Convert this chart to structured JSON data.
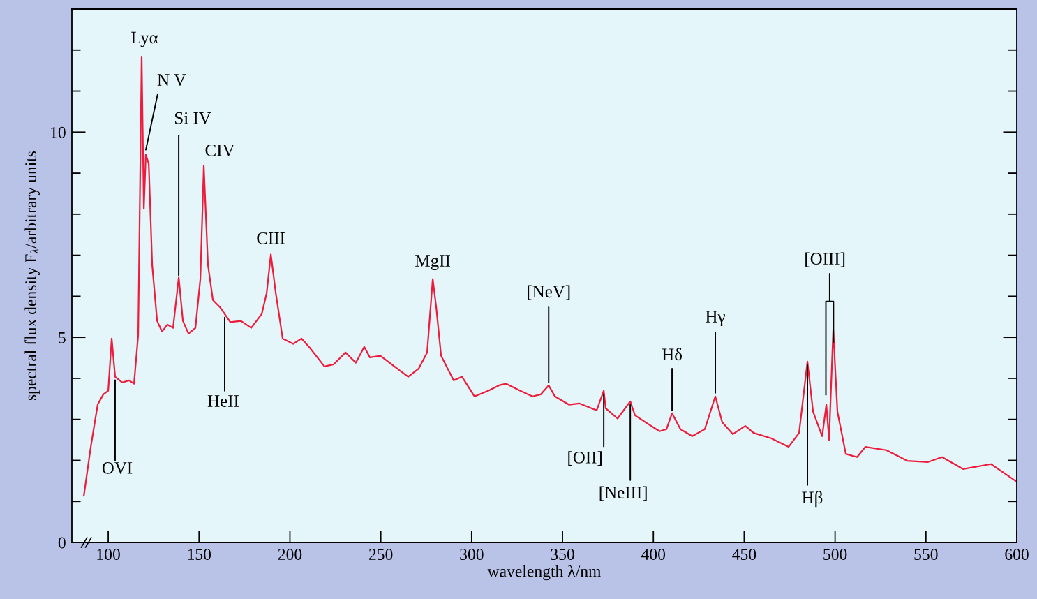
{
  "chart_data": {
    "type": "line",
    "xlabel": "wavelength λ/nm",
    "ylabel": "spectral flux density F$_{λ}$/arbitrary units",
    "xlim": [
      80,
      600
    ],
    "ylim": [
      0,
      13
    ],
    "xticks": [
      100,
      150,
      200,
      250,
      300,
      350,
      400,
      450,
      500,
      550,
      600
    ],
    "yticks": [
      0,
      {
        "value": 1,
        "label": null
      },
      {
        "value": 2,
        "label": null
      },
      {
        "value": 3,
        "label": null
      },
      {
        "value": 4,
        "label": null
      },
      5,
      {
        "value": 6,
        "label": null
      },
      {
        "value": 7,
        "label": null
      },
      {
        "value": 8,
        "label": null
      },
      {
        "value": 9,
        "label": null
      },
      10,
      {
        "value": 11,
        "label": null
      },
      {
        "value": 12,
        "label": null
      }
    ],
    "grid": false,
    "legend": false,
    "marker": "none",
    "line_style": "solid",
    "series": [
      {
        "color": "#ee1c3c",
        "x": [
          86.6,
          90.4,
          94.2,
          97.3,
          100,
          101.9,
          103.8,
          107.7,
          111.5,
          114.2,
          116.5,
          118.4,
          119.6,
          120.7,
          122.3,
          124.2,
          126.9,
          129.6,
          132.6,
          135.7,
          138.8,
          141.1,
          144.2,
          148.0,
          150.7,
          152.6,
          154.9,
          157.6,
          161.4,
          164.1,
          167.2,
          173.0,
          178.7,
          184.5,
          187.2,
          189.5,
          192.2,
          196.0,
          201.8,
          206.4,
          211.4,
          219.0,
          224.0,
          230.6,
          236.3,
          240.9,
          244.0,
          249.8,
          257.5,
          265.1,
          270.9,
          275.5,
          278.6,
          280.5,
          283.2,
          290.1,
          294.7,
          301.6,
          309.3,
          315.1,
          318.9,
          326.6,
          333.5,
          338.1,
          342.4,
          345.8,
          353.5,
          359.2,
          368.8,
          372.7,
          373.8,
          380.3,
          387.3,
          389.9,
          395.7,
          403.4,
          407.2,
          410.3,
          414.9,
          421.4,
          428.3,
          434.1,
          437.9,
          443.7,
          450.6,
          455.2,
          464.8,
          474.4,
          480.2,
          484.8,
          487.9,
          492.9,
          495.2,
          496.7,
          499.0,
          501.3,
          505.9,
          512.1,
          516.7,
          528.2,
          539.7,
          551.2,
          558.9,
          570.4,
          585.8,
          600
        ],
        "values": [
          1.14,
          2.33,
          3.36,
          3.61,
          3.7,
          4.97,
          4.04,
          3.9,
          3.95,
          3.87,
          5.06,
          11.84,
          8.13,
          9.45,
          9.23,
          6.76,
          5.4,
          5.14,
          5.31,
          5.23,
          6.46,
          5.4,
          5.09,
          5.23,
          6.42,
          9.18,
          6.76,
          5.91,
          5.74,
          5.57,
          5.37,
          5.4,
          5.23,
          5.57,
          6.08,
          7.02,
          6.08,
          4.97,
          4.84,
          4.97,
          4.72,
          4.29,
          4.34,
          4.63,
          4.38,
          4.77,
          4.51,
          4.55,
          4.29,
          4.04,
          4.24,
          4.63,
          6.42,
          5.74,
          4.55,
          3.95,
          4.04,
          3.56,
          3.7,
          3.83,
          3.87,
          3.7,
          3.56,
          3.61,
          3.83,
          3.56,
          3.36,
          3.39,
          3.22,
          3.7,
          3.27,
          3.02,
          3.44,
          3.1,
          2.93,
          2.71,
          2.76,
          3.15,
          2.76,
          2.59,
          2.76,
          3.56,
          2.93,
          2.64,
          2.84,
          2.67,
          2.54,
          2.33,
          2.67,
          4.41,
          3.19,
          2.59,
          3.36,
          2.5,
          5.18,
          3.19,
          2.16,
          2.08,
          2.33,
          2.25,
          1.99,
          1.96,
          2.08,
          1.79,
          1.91,
          1.48
        ]
      }
    ],
    "annotations": [
      {
        "text": "Lyα",
        "x": 118.4,
        "y": 11.84
      },
      {
        "text": "N V",
        "x": 120.7,
        "y": 9.45
      },
      {
        "text": "Si IV",
        "x": 138.8,
        "y": 6.46
      },
      {
        "text": "CIV",
        "x": 152.6,
        "y": 9.18
      },
      {
        "text": "CIII",
        "x": 189.5,
        "y": 7.02
      },
      {
        "text": "MgII",
        "x": 278.6,
        "y": 6.42
      },
      {
        "text": "[NeV]",
        "x": 342.4,
        "y": 3.83
      },
      {
        "text": "Hδ",
        "x": 410.3,
        "y": 3.15
      },
      {
        "text": "Hγ",
        "x": 434.1,
        "y": 3.56
      },
      "[OIII]",
      {
        "text": "OVI",
        "x": 103.8,
        "y": 4.04
      },
      {
        "text": "HeII",
        "x": 164.1,
        "y": 5.57
      },
      {
        "text": "[OII]",
        "x": 372.7,
        "y": 3.7
      },
      {
        "text": "[NeIII]",
        "x": 387.3,
        "y": 3.44
      },
      {
        "text": "Hβ",
        "x": 484.8,
        "y": 4.41
      }
    ]
  }
}
